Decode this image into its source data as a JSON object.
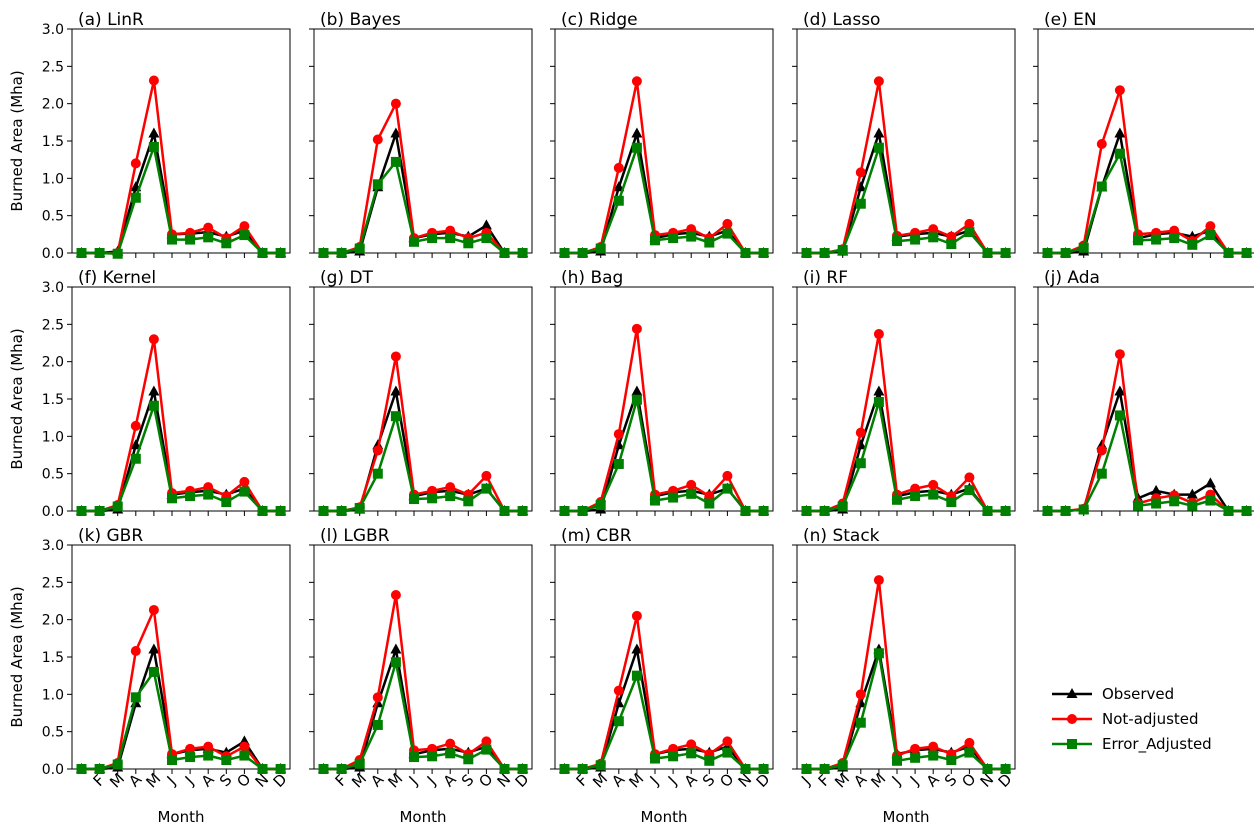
{
  "colors": {
    "observed": "#000000",
    "not_adjusted": "#ff0000",
    "error_adjusted": "#008000"
  },
  "legend": {
    "placement": "right, beside last row",
    "entries": [
      {
        "label": "Observed",
        "marker": "triangle",
        "color": "#000000"
      },
      {
        "label": "Not-adjusted",
        "marker": "circle",
        "color": "#ff0000"
      },
      {
        "label": "Error_Adjusted",
        "marker": "square",
        "color": "#008000"
      }
    ]
  },
  "axes": {
    "ylabel": "Burned Area (Mha)",
    "xlabel": "Month",
    "ylim": [
      0,
      3.0
    ],
    "yticks": [
      "0.0",
      "0.5",
      "1.0",
      "1.5",
      "2.0",
      "2.5",
      "3.0"
    ],
    "xtick_labels": [
      "J",
      "F",
      "M",
      "A",
      "M",
      "J",
      "J",
      "A",
      "S",
      "O",
      "N",
      "D"
    ],
    "grid": false
  },
  "chart_data": [
    {
      "type": "line",
      "title": "(a) LinR",
      "x": [
        "J",
        "F",
        "M",
        "A",
        "M",
        "J",
        "J",
        "A",
        "S",
        "O",
        "N",
        "D"
      ],
      "series": [
        {
          "name": "Observed",
          "values": [
            0,
            0,
            0.02,
            0.88,
            1.6,
            0.25,
            0.26,
            0.28,
            0.22,
            0.3,
            0,
            0
          ]
        },
        {
          "name": "Not-adjusted",
          "values": [
            0,
            0,
            0,
            1.2,
            2.31,
            0.25,
            0.27,
            0.34,
            0.2,
            0.36,
            0,
            0
          ]
        },
        {
          "name": "Error_Adjusted",
          "values": [
            0,
            0,
            -0.01,
            0.74,
            1.42,
            0.18,
            0.18,
            0.21,
            0.13,
            0.24,
            0,
            0
          ]
        }
      ]
    },
    {
      "type": "line",
      "title": "(b) Bayes",
      "x": [
        "J",
        "F",
        "M",
        "A",
        "M",
        "J",
        "J",
        "A",
        "S",
        "O",
        "N",
        "D"
      ],
      "series": [
        {
          "name": "Observed",
          "values": [
            0,
            0,
            0.02,
            0.88,
            1.6,
            0.2,
            0.25,
            0.27,
            0.22,
            0.37,
            0,
            0
          ]
        },
        {
          "name": "Not-adjusted",
          "values": [
            0,
            0,
            0.08,
            1.52,
            2.0,
            0.2,
            0.27,
            0.3,
            0.2,
            0.27,
            0,
            0
          ]
        },
        {
          "name": "Error_Adjusted",
          "values": [
            0,
            0,
            0.06,
            0.92,
            1.22,
            0.15,
            0.2,
            0.2,
            0.13,
            0.2,
            0,
            0
          ]
        }
      ]
    },
    {
      "type": "line",
      "title": "(c) Ridge",
      "x": [
        "J",
        "F",
        "M",
        "A",
        "M",
        "J",
        "J",
        "A",
        "S",
        "O",
        "N",
        "D"
      ],
      "series": [
        {
          "name": "Observed",
          "values": [
            0,
            0,
            0.02,
            0.88,
            1.6,
            0.2,
            0.25,
            0.27,
            0.22,
            0.3,
            0,
            0
          ]
        },
        {
          "name": "Not-adjusted",
          "values": [
            0,
            0,
            0.08,
            1.14,
            2.3,
            0.24,
            0.27,
            0.32,
            0.2,
            0.39,
            0,
            0
          ]
        },
        {
          "name": "Error_Adjusted",
          "values": [
            0,
            0,
            0.06,
            0.7,
            1.41,
            0.17,
            0.2,
            0.22,
            0.14,
            0.26,
            0,
            0
          ]
        }
      ]
    },
    {
      "type": "line",
      "title": "(d) Lasso",
      "x": [
        "J",
        "F",
        "M",
        "A",
        "M",
        "J",
        "J",
        "A",
        "S",
        "O",
        "N",
        "D"
      ],
      "series": [
        {
          "name": "Observed",
          "values": [
            0,
            0,
            0.02,
            0.88,
            1.6,
            0.22,
            0.25,
            0.27,
            0.22,
            0.3,
            0,
            0
          ]
        },
        {
          "name": "Not-adjusted",
          "values": [
            0,
            0,
            0.05,
            1.08,
            2.3,
            0.23,
            0.27,
            0.32,
            0.22,
            0.39,
            0,
            0
          ]
        },
        {
          "name": "Error_Adjusted",
          "values": [
            0,
            0,
            0.04,
            0.66,
            1.41,
            0.16,
            0.18,
            0.21,
            0.12,
            0.28,
            0,
            0
          ]
        }
      ]
    },
    {
      "type": "line",
      "title": "(e) EN",
      "x": [
        "J",
        "F",
        "M",
        "A",
        "M",
        "J",
        "J",
        "A",
        "S",
        "O",
        "N",
        "D"
      ],
      "series": [
        {
          "name": "Observed",
          "values": [
            0,
            0,
            0.02,
            0.88,
            1.6,
            0.2,
            0.25,
            0.27,
            0.22,
            0.3,
            0,
            0
          ]
        },
        {
          "name": "Not-adjusted",
          "values": [
            0,
            0,
            0.1,
            1.46,
            2.18,
            0.25,
            0.27,
            0.3,
            0.16,
            0.36,
            0,
            0
          ]
        },
        {
          "name": "Error_Adjusted",
          "values": [
            0,
            0,
            0.07,
            0.89,
            1.33,
            0.17,
            0.18,
            0.2,
            0.11,
            0.24,
            0,
            0
          ]
        }
      ]
    },
    {
      "type": "line",
      "title": "(f) Kernel",
      "x": [
        "J",
        "F",
        "M",
        "A",
        "M",
        "J",
        "J",
        "A",
        "S",
        "O",
        "N",
        "D"
      ],
      "series": [
        {
          "name": "Observed",
          "values": [
            0,
            0,
            0.02,
            0.88,
            1.6,
            0.22,
            0.25,
            0.27,
            0.22,
            0.3,
            0,
            0
          ]
        },
        {
          "name": "Not-adjusted",
          "values": [
            0,
            0,
            0.08,
            1.14,
            2.3,
            0.24,
            0.27,
            0.32,
            0.2,
            0.39,
            0,
            0
          ]
        },
        {
          "name": "Error_Adjusted",
          "values": [
            0,
            0,
            0.06,
            0.7,
            1.41,
            0.17,
            0.2,
            0.22,
            0.12,
            0.26,
            0,
            0
          ]
        }
      ]
    },
    {
      "type": "line",
      "title": "(g) DT",
      "x": [
        "J",
        "F",
        "M",
        "A",
        "M",
        "J",
        "J",
        "A",
        "S",
        "O",
        "N",
        "D"
      ],
      "series": [
        {
          "name": "Observed",
          "values": [
            0,
            0,
            0.02,
            0.88,
            1.6,
            0.2,
            0.25,
            0.27,
            0.22,
            0.3,
            0,
            0
          ]
        },
        {
          "name": "Not-adjusted",
          "values": [
            0,
            0,
            0.05,
            0.81,
            2.07,
            0.22,
            0.27,
            0.32,
            0.22,
            0.47,
            0,
            0
          ]
        },
        {
          "name": "Error_Adjusted",
          "values": [
            0,
            0,
            0.04,
            0.5,
            1.27,
            0.16,
            0.17,
            0.2,
            0.13,
            0.3,
            0,
            0
          ]
        }
      ]
    },
    {
      "type": "line",
      "title": "(h) Bag",
      "x": [
        "J",
        "F",
        "M",
        "A",
        "M",
        "J",
        "J",
        "A",
        "S",
        "O",
        "N",
        "D"
      ],
      "series": [
        {
          "name": "Observed",
          "values": [
            0,
            0,
            0.02,
            0.88,
            1.6,
            0.2,
            0.25,
            0.27,
            0.22,
            0.3,
            0,
            0
          ]
        },
        {
          "name": "Not-adjusted",
          "values": [
            0,
            0,
            0.12,
            1.03,
            2.44,
            0.22,
            0.27,
            0.35,
            0.2,
            0.47,
            0,
            0
          ]
        },
        {
          "name": "Error_Adjusted",
          "values": [
            0,
            0,
            0.08,
            0.63,
            1.49,
            0.14,
            0.18,
            0.23,
            0.1,
            0.3,
            0,
            0
          ]
        }
      ]
    },
    {
      "type": "line",
      "title": "(i) RF",
      "x": [
        "J",
        "F",
        "M",
        "A",
        "M",
        "J",
        "J",
        "A",
        "S",
        "O",
        "N",
        "D"
      ],
      "series": [
        {
          "name": "Observed",
          "values": [
            0,
            0,
            0.02,
            0.88,
            1.6,
            0.2,
            0.25,
            0.27,
            0.22,
            0.3,
            0,
            0
          ]
        },
        {
          "name": "Not-adjusted",
          "values": [
            0,
            0,
            0.1,
            1.05,
            2.37,
            0.22,
            0.3,
            0.35,
            0.2,
            0.45,
            0,
            0
          ]
        },
        {
          "name": "Error_Adjusted",
          "values": [
            0,
            0,
            0.06,
            0.64,
            1.46,
            0.15,
            0.2,
            0.22,
            0.12,
            0.28,
            0,
            0
          ]
        }
      ]
    },
    {
      "type": "line",
      "title": "(j) Ada",
      "x": [
        "J",
        "F",
        "M",
        "A",
        "M",
        "J",
        "J",
        "A",
        "S",
        "O",
        "N",
        "D"
      ],
      "series": [
        {
          "name": "Observed",
          "values": [
            0,
            0,
            0.02,
            0.88,
            1.6,
            0.17,
            0.27,
            0.22,
            0.22,
            0.37,
            0,
            0
          ]
        },
        {
          "name": "Not-adjusted",
          "values": [
            0,
            0,
            0.03,
            0.81,
            2.1,
            0.1,
            0.17,
            0.21,
            0.11,
            0.22,
            0,
            0
          ]
        },
        {
          "name": "Error_Adjusted",
          "values": [
            0,
            0,
            0.02,
            0.5,
            1.28,
            0.07,
            0.1,
            0.13,
            0.07,
            0.14,
            0,
            0
          ]
        }
      ]
    },
    {
      "type": "line",
      "title": "(k) GBR",
      "x": [
        "J",
        "F",
        "M",
        "A",
        "M",
        "J",
        "J",
        "A",
        "S",
        "O",
        "N",
        "D"
      ],
      "series": [
        {
          "name": "Observed",
          "values": [
            0,
            0,
            0.02,
            0.88,
            1.6,
            0.2,
            0.25,
            0.27,
            0.22,
            0.37,
            0,
            0
          ]
        },
        {
          "name": "Not-adjusted",
          "values": [
            0,
            0,
            0.08,
            1.58,
            2.13,
            0.2,
            0.27,
            0.3,
            0.17,
            0.3,
            0,
            0
          ]
        },
        {
          "name": "Error_Adjusted",
          "values": [
            0,
            0,
            0.06,
            0.96,
            1.3,
            0.12,
            0.16,
            0.18,
            0.12,
            0.18,
            0,
            0
          ]
        }
      ]
    },
    {
      "type": "line",
      "title": "(l) LGBR",
      "x": [
        "J",
        "F",
        "M",
        "A",
        "M",
        "J",
        "J",
        "A",
        "S",
        "O",
        "N",
        "D"
      ],
      "series": [
        {
          "name": "Observed",
          "values": [
            0,
            0,
            0.02,
            0.88,
            1.6,
            0.2,
            0.25,
            0.27,
            0.22,
            0.3,
            0,
            0
          ]
        },
        {
          "name": "Not-adjusted",
          "values": [
            0,
            0,
            0.12,
            0.96,
            2.33,
            0.25,
            0.27,
            0.34,
            0.2,
            0.37,
            0,
            0
          ]
        },
        {
          "name": "Error_Adjusted",
          "values": [
            0,
            0,
            0.07,
            0.59,
            1.43,
            0.16,
            0.17,
            0.21,
            0.13,
            0.26,
            0,
            0
          ]
        }
      ]
    },
    {
      "type": "line",
      "title": "(m) CBR",
      "x": [
        "J",
        "F",
        "M",
        "A",
        "M",
        "J",
        "J",
        "A",
        "S",
        "O",
        "N",
        "D"
      ],
      "series": [
        {
          "name": "Observed",
          "values": [
            0,
            0,
            0.02,
            0.88,
            1.6,
            0.2,
            0.25,
            0.27,
            0.22,
            0.3,
            0,
            0
          ]
        },
        {
          "name": "Not-adjusted",
          "values": [
            0,
            0,
            0.07,
            1.05,
            2.05,
            0.2,
            0.27,
            0.33,
            0.2,
            0.37,
            0,
            0
          ]
        },
        {
          "name": "Error_Adjusted",
          "values": [
            0,
            0,
            0.05,
            0.64,
            1.25,
            0.14,
            0.17,
            0.21,
            0.11,
            0.22,
            0,
            0
          ]
        }
      ]
    },
    {
      "type": "line",
      "title": "(n) Stack",
      "x": [
        "J",
        "F",
        "M",
        "A",
        "M",
        "J",
        "J",
        "A",
        "S",
        "O",
        "N",
        "D"
      ],
      "series": [
        {
          "name": "Observed",
          "values": [
            0,
            0,
            0.02,
            0.88,
            1.6,
            0.2,
            0.25,
            0.27,
            0.22,
            0.3,
            0,
            0
          ]
        },
        {
          "name": "Not-adjusted",
          "values": [
            0,
            0,
            0.08,
            1.0,
            2.53,
            0.18,
            0.27,
            0.3,
            0.2,
            0.35,
            0,
            0
          ]
        },
        {
          "name": "Error_Adjusted",
          "values": [
            0,
            0,
            0.05,
            0.62,
            1.55,
            0.11,
            0.15,
            0.18,
            0.12,
            0.22,
            0,
            0
          ]
        }
      ]
    }
  ]
}
